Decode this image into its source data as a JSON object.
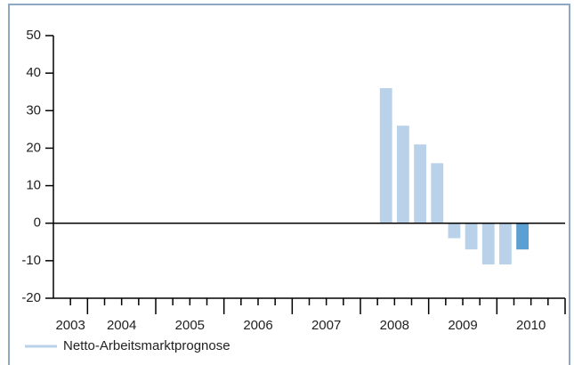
{
  "chart_data": {
    "type": "bar",
    "x": [
      2008.375,
      2008.625,
      2008.875,
      2009.125,
      2009.375,
      2009.625,
      2009.875,
      2010.125,
      2010.375
    ],
    "series": [
      {
        "name": "Netto-Arbeitsmarktprognose",
        "color": "#b9d2ea",
        "values": [
          36,
          26,
          21,
          16,
          -4,
          -7,
          -11,
          -11,
          -7
        ],
        "colors": [
          "#b9d2ea",
          "#b9d2ea",
          "#b9d2ea",
          "#b9d2ea",
          "#b9d2ea",
          "#b9d2ea",
          "#b9d2ea",
          "#b9d2ea",
          "#5b9fd3"
        ]
      }
    ],
    "categories": [
      "2003",
      "2004",
      "2005",
      "2006",
      "2007",
      "2008",
      "2009",
      "2010"
    ],
    "xlim": [
      2003.5,
      2011
    ],
    "xticks": [
      2004,
      2005,
      2006,
      2007,
      2008,
      2009,
      2010,
      2011
    ],
    "xticks_minor": [
      2003.75,
      2004.25,
      2004.5,
      2004.75,
      2005.25,
      2005.5,
      2005.75,
      2006.25,
      2006.5,
      2006.75,
      2007.25,
      2007.5,
      2007.75,
      2008.25,
      2008.5,
      2008.75,
      2009.25,
      2009.5,
      2009.75,
      2010.25,
      2010.5,
      2010.75
    ],
    "ylim": [
      -20,
      50
    ],
    "yticks": [
      -20,
      -10,
      0,
      10,
      20,
      30,
      40,
      50
    ],
    "legend": "bottom-left"
  }
}
